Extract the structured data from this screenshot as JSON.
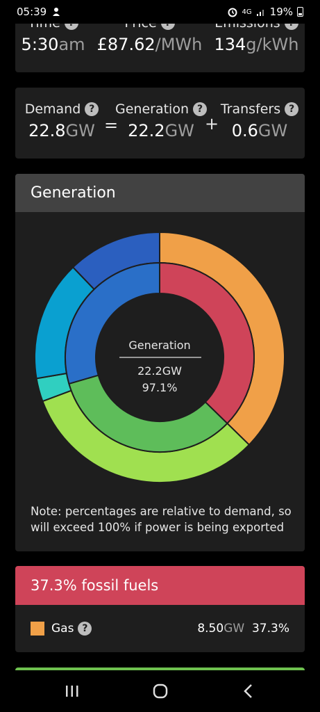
{
  "status_bar": {
    "time": "05:39",
    "network": "4G",
    "battery": "19%"
  },
  "summary": {
    "time": {
      "label": "Time",
      "value": "5:30",
      "unit": "am"
    },
    "price": {
      "label": "Price",
      "value": "£87.62",
      "unit": "/MWh"
    },
    "emissions": {
      "label": "Emissions",
      "value": "134",
      "unit": "g/kWh"
    }
  },
  "balance": {
    "demand": {
      "label": "Demand",
      "value": "22.8",
      "unit": "GW"
    },
    "generation": {
      "label": "Generation",
      "value": "22.2",
      "unit": "GW"
    },
    "transfers": {
      "label": "Transfers",
      "value": "0.6",
      "unit": "GW"
    },
    "equals": "=",
    "plus": "+"
  },
  "generation_card": {
    "title": "Generation",
    "center_label": "Generation",
    "center_value": "22.2GW",
    "center_percent": "97.1%",
    "note": "Note: percentages are relative to demand, so will exceed 100% if power is being exported",
    "colors": {
      "orange": "#f0a048",
      "red": "#cf4459",
      "green_light": "#a0e050",
      "green": "#5ebd5a",
      "teal": "#30cfc0",
      "cyan": "#0aa0d0",
      "blue": "#2a6fc8",
      "blue_dark": "#2b5fbf"
    }
  },
  "chart_data": {
    "type": "pie",
    "outer_ring": [
      {
        "color": "#f0a048",
        "percent": 37.3
      },
      {
        "color": "#a0e050",
        "percent": 32.0
      },
      {
        "color": "#30cfc0",
        "percent": 3.0
      },
      {
        "color": "#0aa0d0",
        "percent": 15.5
      },
      {
        "color": "#2b5fbf",
        "percent": 12.2
      }
    ],
    "inner_ring": [
      {
        "color": "#cf4459",
        "percent": 37.3
      },
      {
        "color": "#5ebd5a",
        "percent": 33.2
      },
      {
        "color": "#2a6fc8",
        "percent": 29.5
      }
    ]
  },
  "fossil": {
    "title": "37.3% fossil fuels",
    "rows": [
      {
        "name": "Gas",
        "value": "8.50",
        "unit": "GW",
        "percent": "37.3%",
        "color": "#f0a048"
      }
    ]
  }
}
